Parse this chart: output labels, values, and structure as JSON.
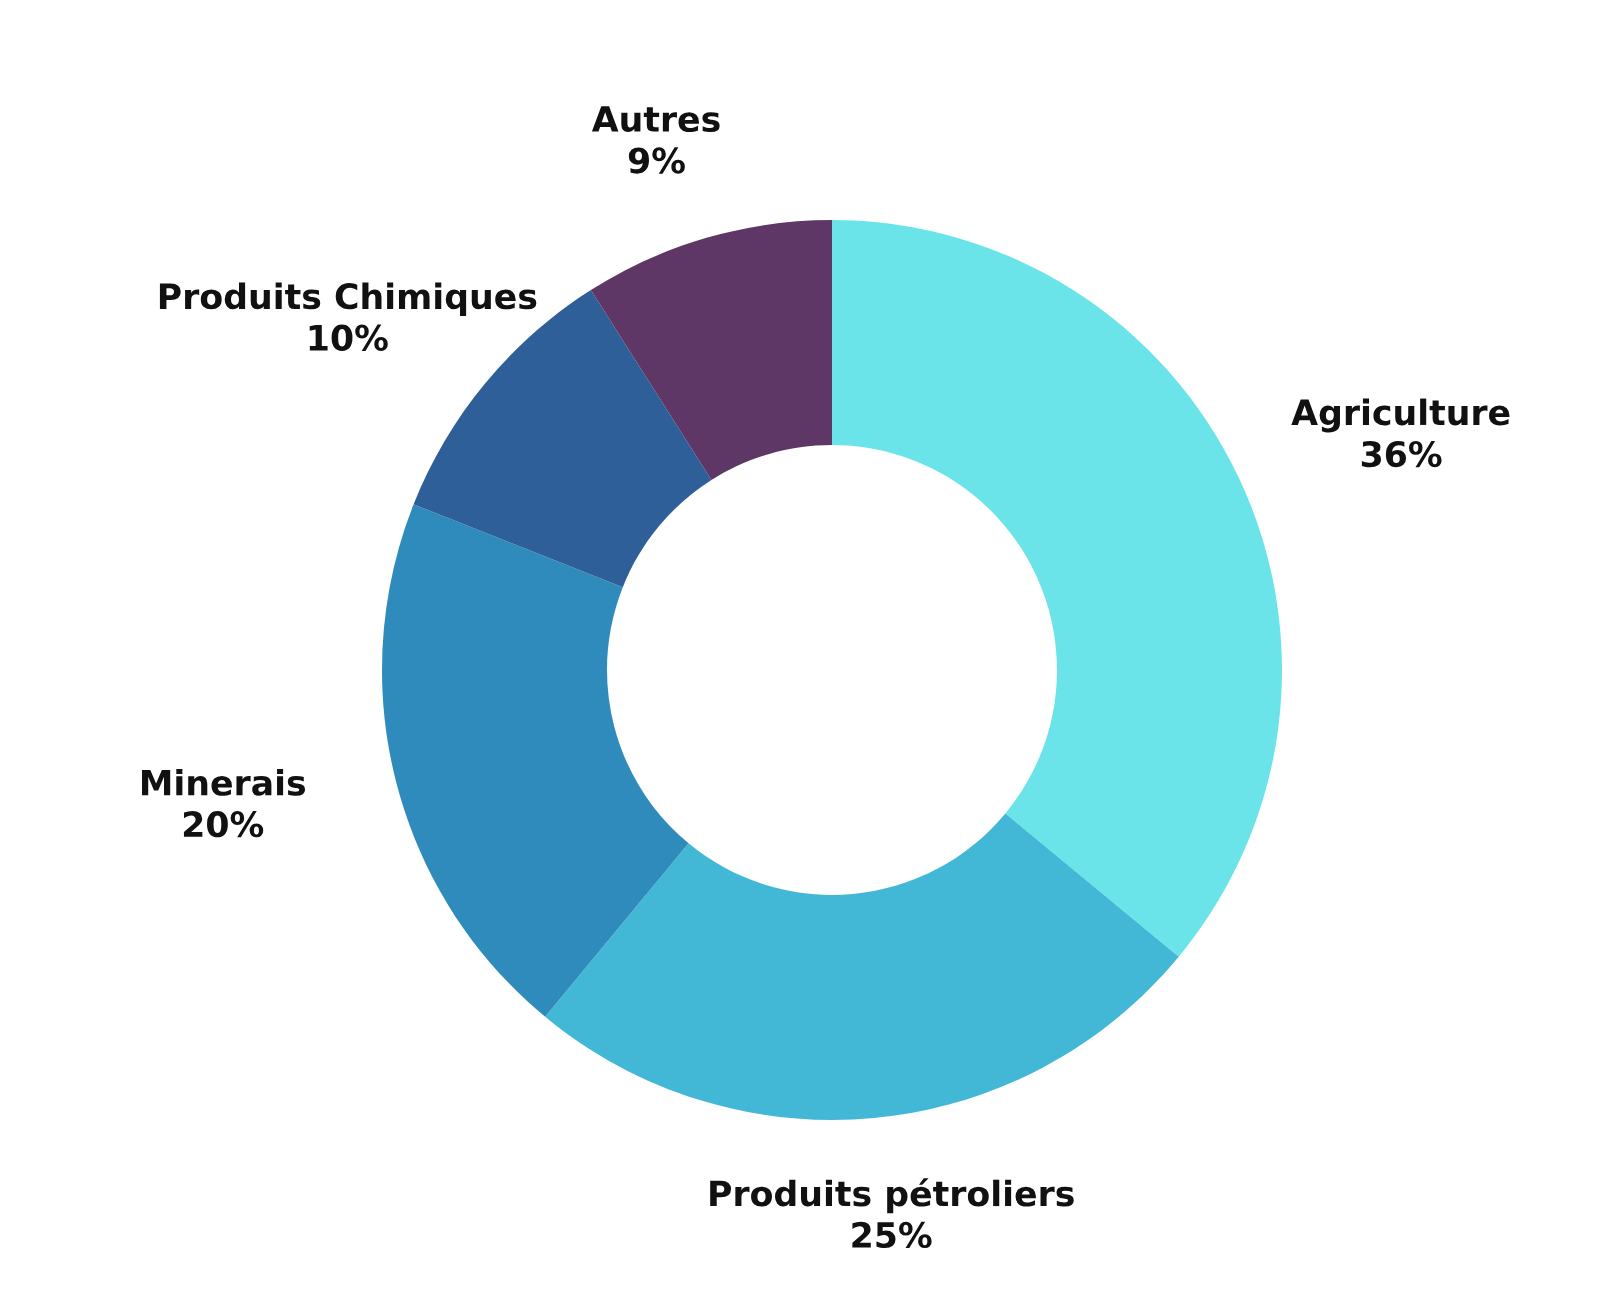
{
  "chart_data": {
    "type": "donut",
    "categories": [
      "Agriculture",
      "Produits pétroliers",
      "Minerais",
      "Produits Chimiques",
      "Autres"
    ],
    "values": [
      36,
      25,
      20,
      10,
      9
    ],
    "value_labels": [
      "36%",
      "25%",
      "20%",
      "10%",
      "9%"
    ],
    "colors": [
      "#6ae4e8",
      "#42b8d6",
      "#2e8bbb",
      "#2e5f98",
      "#5e3766"
    ],
    "legend": false
  }
}
